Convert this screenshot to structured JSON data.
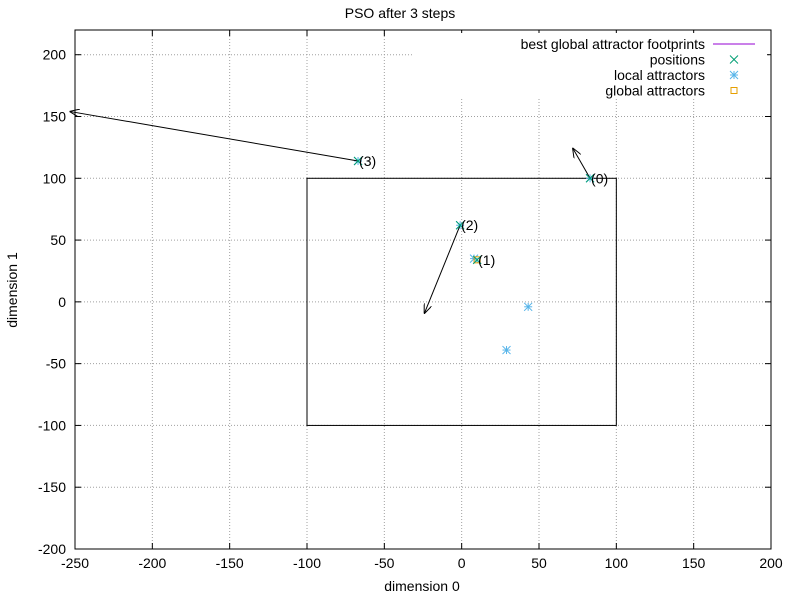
{
  "chart_data": {
    "type": "scatter",
    "title": "PSO after 3 steps",
    "xlabel": "dimension 0",
    "ylabel": "dimension 1",
    "xlim": [
      -250,
      200
    ],
    "ylim": [
      -200,
      220
    ],
    "xticks": [
      -250,
      -200,
      -150,
      -100,
      -50,
      0,
      50,
      100,
      150,
      200
    ],
    "yticks": [
      -200,
      -150,
      -100,
      -50,
      0,
      50,
      100,
      150,
      200
    ],
    "grid": true,
    "legend_position": "top-right",
    "legend": [
      {
        "label": "best global attractor footprints",
        "kind": "line",
        "color": "#9400d3"
      },
      {
        "label": "positions",
        "kind": "x",
        "color": "#009e73"
      },
      {
        "label": "local attractors",
        "kind": "star",
        "color": "#56b4e9"
      },
      {
        "label": "global attractors",
        "kind": "square",
        "color": "#e69f00"
      }
    ],
    "bounds_box": {
      "x": [
        -100,
        100
      ],
      "y": [
        -100,
        100
      ]
    },
    "particles": [
      {
        "label": "(0)",
        "x": 83,
        "y": 100,
        "vx": -11,
        "vy": 24
      },
      {
        "label": "(1)",
        "x": 10,
        "y": 34,
        "vx": 0,
        "vy": 0
      },
      {
        "label": "(2)",
        "x": -1,
        "y": 62,
        "vx": -23,
        "vy": -71
      },
      {
        "label": "(3)",
        "x": -67,
        "y": 114,
        "vx": -186,
        "vy": 40
      }
    ],
    "local_attractors": [
      {
        "x": 8,
        "y": 35
      },
      {
        "x": 43,
        "y": -4
      },
      {
        "x": 29,
        "y": -39
      },
      {
        "x": 83,
        "y": 100
      },
      {
        "x": -1,
        "y": 62
      },
      {
        "x": -67,
        "y": 114
      }
    ],
    "global_attractors": [
      {
        "x": 10,
        "y": 34
      }
    ],
    "colors": {
      "grid": "#a0a0a0",
      "axis": "#000000",
      "footprints": "#9400d3",
      "positions": "#009e73",
      "local": "#56b4e9",
      "global": "#e69f00"
    }
  }
}
